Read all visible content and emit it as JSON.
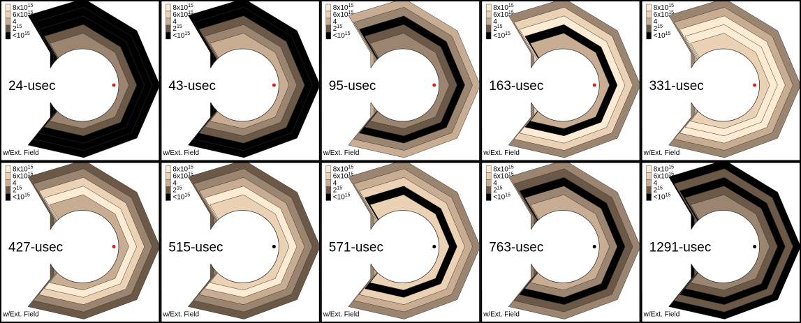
{
  "panels": [
    {
      "time": "24-usec"
    },
    {
      "time": "43-usec"
    },
    {
      "time": "95-usec"
    },
    {
      "time": "163-usec"
    },
    {
      "time": "331-usec"
    },
    {
      "time": "427-usec"
    },
    {
      "time": "515-usec"
    },
    {
      "time": "571-usec"
    },
    {
      "time": "763-usec"
    },
    {
      "time": "1291-usec"
    }
  ],
  "field_label": "w/Ext. Field",
  "legend": [
    {
      "base": "8x10",
      "exp": "15"
    },
    {
      "base": "6x10",
      "exp": "15"
    },
    {
      "base": "4"
    },
    {
      "base": "2",
      "exp": "15"
    },
    {
      "base": "<10",
      "exp": "15"
    }
  ]
}
